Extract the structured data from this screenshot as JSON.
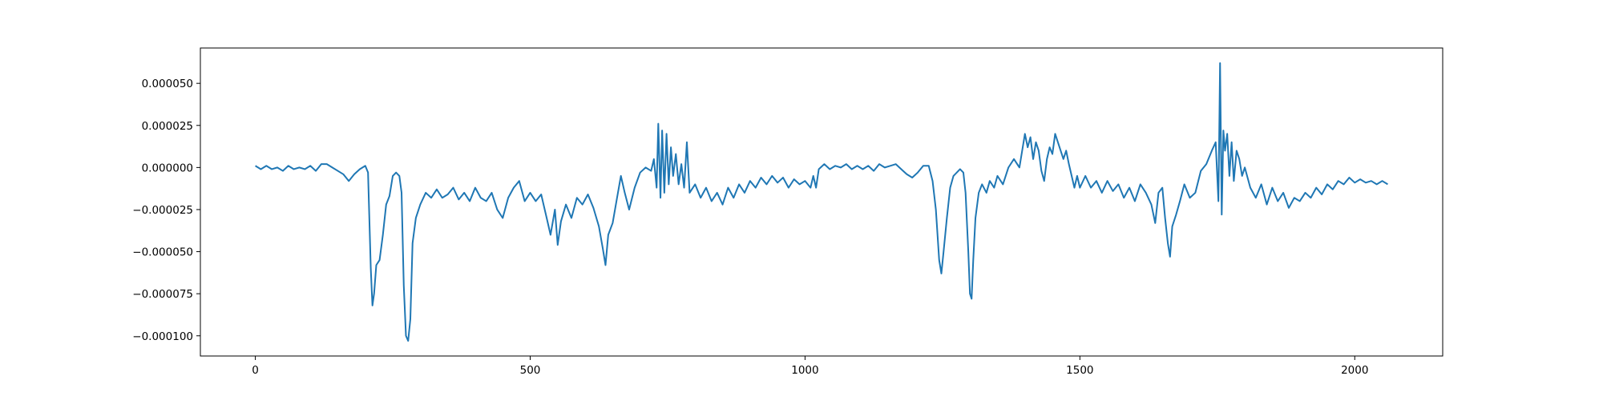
{
  "chart_data": {
    "type": "line",
    "title": "",
    "xlabel": "",
    "ylabel": "",
    "xlim": [
      -100,
      2160
    ],
    "ylim": [
      -0.000112,
      7.1e-05
    ],
    "grid": false,
    "x_ticks": [
      {
        "value": 0,
        "label": "0"
      },
      {
        "value": 500,
        "label": "500"
      },
      {
        "value": 1000,
        "label": "1000"
      },
      {
        "value": 1500,
        "label": "1500"
      },
      {
        "value": 2000,
        "label": "2000"
      }
    ],
    "y_ticks": [
      {
        "value": 5e-05,
        "label": "0.000050"
      },
      {
        "value": 2.5e-05,
        "label": "0.000025"
      },
      {
        "value": 0.0,
        "label": "0.000000"
      },
      {
        "value": -2.5e-05,
        "label": "−0.000025"
      },
      {
        "value": -5e-05,
        "label": "−0.000050"
      },
      {
        "value": -7.5e-05,
        "label": "−0.000075"
      },
      {
        "value": -0.0001,
        "label": "−0.000100"
      }
    ],
    "series": [
      {
        "color": "#1f77b4",
        "points": [
          [
            0,
            1e-06
          ],
          [
            10,
            -1e-06
          ],
          [
            20,
            1e-06
          ],
          [
            30,
            -1e-06
          ],
          [
            40,
            0.0
          ],
          [
            50,
            -2e-06
          ],
          [
            60,
            1e-06
          ],
          [
            70,
            -1e-06
          ],
          [
            80,
            0.0
          ],
          [
            90,
            -1e-06
          ],
          [
            100,
            1e-06
          ],
          [
            110,
            -2e-06
          ],
          [
            120,
            2e-06
          ],
          [
            130,
            2e-06
          ],
          [
            140,
            0.0
          ],
          [
            150,
            -2e-06
          ],
          [
            160,
            -4e-06
          ],
          [
            170,
            -8e-06
          ],
          [
            180,
            -4e-06
          ],
          [
            190,
            -1e-06
          ],
          [
            200,
            1e-06
          ],
          [
            205,
            -3e-06
          ],
          [
            210,
            -6e-05
          ],
          [
            213,
            -8.2e-05
          ],
          [
            216,
            -7.5e-05
          ],
          [
            220,
            -5.8e-05
          ],
          [
            226,
            -5.5e-05
          ],
          [
            232,
            -4e-05
          ],
          [
            238,
            -2.2e-05
          ],
          [
            244,
            -1.7e-05
          ],
          [
            250,
            -5e-06
          ],
          [
            256,
            -3e-06
          ],
          [
            262,
            -5e-06
          ],
          [
            266,
            -1.5e-05
          ],
          [
            270,
            -7e-05
          ],
          [
            274,
            -0.0001
          ],
          [
            278,
            -0.000103
          ],
          [
            282,
            -9e-05
          ],
          [
            286,
            -4.5e-05
          ],
          [
            292,
            -3e-05
          ],
          [
            300,
            -2.2e-05
          ],
          [
            310,
            -1.5e-05
          ],
          [
            320,
            -1.8e-05
          ],
          [
            330,
            -1.3e-05
          ],
          [
            340,
            -1.8e-05
          ],
          [
            350,
            -1.6e-05
          ],
          [
            360,
            -1.2e-05
          ],
          [
            370,
            -1.9e-05
          ],
          [
            380,
            -1.5e-05
          ],
          [
            390,
            -2e-05
          ],
          [
            400,
            -1.2e-05
          ],
          [
            410,
            -1.8e-05
          ],
          [
            420,
            -2e-05
          ],
          [
            430,
            -1.5e-05
          ],
          [
            440,
            -2.5e-05
          ],
          [
            450,
            -3e-05
          ],
          [
            460,
            -1.8e-05
          ],
          [
            470,
            -1.2e-05
          ],
          [
            480,
            -8e-06
          ],
          [
            490,
            -2e-05
          ],
          [
            500,
            -1.5e-05
          ],
          [
            510,
            -2e-05
          ],
          [
            520,
            -1.6e-05
          ],
          [
            530,
            -3e-05
          ],
          [
            537,
            -4e-05
          ],
          [
            545,
            -2.5e-05
          ],
          [
            550,
            -4.6e-05
          ],
          [
            556,
            -3.2e-05
          ],
          [
            565,
            -2.2e-05
          ],
          [
            575,
            -3e-05
          ],
          [
            585,
            -1.8e-05
          ],
          [
            595,
            -2.2e-05
          ],
          [
            605,
            -1.6e-05
          ],
          [
            615,
            -2.4e-05
          ],
          [
            625,
            -3.5e-05
          ],
          [
            632,
            -4.8e-05
          ],
          [
            637,
            -5.8e-05
          ],
          [
            642,
            -4e-05
          ],
          [
            650,
            -3.3e-05
          ],
          [
            658,
            -1.8e-05
          ],
          [
            665,
            -5e-06
          ],
          [
            672,
            -1.5e-05
          ],
          [
            680,
            -2.5e-05
          ],
          [
            690,
            -1.2e-05
          ],
          [
            700,
            -3e-06
          ],
          [
            710,
            0.0
          ],
          [
            720,
            -2e-06
          ],
          [
            725,
            5e-06
          ],
          [
            730,
            -1.2e-05
          ],
          [
            733,
            2.6e-05
          ],
          [
            737,
            -1.8e-05
          ],
          [
            740,
            2.2e-05
          ],
          [
            744,
            -1.5e-05
          ],
          [
            748,
            2e-05
          ],
          [
            752,
            -1e-05
          ],
          [
            756,
            1.2e-05
          ],
          [
            760,
            -5e-06
          ],
          [
            765,
            8e-06
          ],
          [
            770,
            -1e-05
          ],
          [
            775,
            2e-06
          ],
          [
            780,
            -1.2e-05
          ],
          [
            785,
            1.5e-05
          ],
          [
            790,
            -1.5e-05
          ],
          [
            800,
            -1e-05
          ],
          [
            810,
            -1.8e-05
          ],
          [
            820,
            -1.2e-05
          ],
          [
            830,
            -2e-05
          ],
          [
            840,
            -1.5e-05
          ],
          [
            850,
            -2.2e-05
          ],
          [
            860,
            -1.2e-05
          ],
          [
            870,
            -1.8e-05
          ],
          [
            880,
            -1e-05
          ],
          [
            890,
            -1.5e-05
          ],
          [
            900,
            -8e-06
          ],
          [
            910,
            -1.2e-05
          ],
          [
            920,
            -6e-06
          ],
          [
            930,
            -1e-05
          ],
          [
            940,
            -5e-06
          ],
          [
            950,
            -9e-06
          ],
          [
            960,
            -6e-06
          ],
          [
            970,
            -1.2e-05
          ],
          [
            980,
            -7e-06
          ],
          [
            990,
            -1e-05
          ],
          [
            1000,
            -8e-06
          ],
          [
            1010,
            -1.2e-05
          ],
          [
            1015,
            -5e-06
          ],
          [
            1020,
            -1.2e-05
          ],
          [
            1025,
            -1e-06
          ],
          [
            1035,
            2e-06
          ],
          [
            1045,
            -1e-06
          ],
          [
            1055,
            1e-06
          ],
          [
            1065,
            0.0
          ],
          [
            1075,
            2e-06
          ],
          [
            1085,
            -1e-06
          ],
          [
            1095,
            1e-06
          ],
          [
            1105,
            -1e-06
          ],
          [
            1115,
            1e-06
          ],
          [
            1125,
            -2e-06
          ],
          [
            1135,
            2e-06
          ],
          [
            1145,
            0.0
          ],
          [
            1155,
            1e-06
          ],
          [
            1165,
            2e-06
          ],
          [
            1175,
            -1e-06
          ],
          [
            1185,
            -4e-06
          ],
          [
            1195,
            -6e-06
          ],
          [
            1205,
            -3e-06
          ],
          [
            1215,
            1e-06
          ],
          [
            1225,
            1e-06
          ],
          [
            1232,
            -8e-06
          ],
          [
            1238,
            -2.5e-05
          ],
          [
            1244,
            -5.5e-05
          ],
          [
            1248,
            -6.3e-05
          ],
          [
            1252,
            -5e-05
          ],
          [
            1258,
            -3e-05
          ],
          [
            1264,
            -1.2e-05
          ],
          [
            1270,
            -5e-06
          ],
          [
            1276,
            -3e-06
          ],
          [
            1282,
            -1e-06
          ],
          [
            1288,
            -3e-06
          ],
          [
            1292,
            -1.5e-05
          ],
          [
            1297,
            -5e-05
          ],
          [
            1300,
            -7.5e-05
          ],
          [
            1303,
            -7.8e-05
          ],
          [
            1306,
            -5.5e-05
          ],
          [
            1310,
            -3e-05
          ],
          [
            1316,
            -1.5e-05
          ],
          [
            1322,
            -1e-05
          ],
          [
            1330,
            -1.5e-05
          ],
          [
            1336,
            -8e-06
          ],
          [
            1344,
            -1.2e-05
          ],
          [
            1350,
            -5e-06
          ],
          [
            1360,
            -1e-05
          ],
          [
            1370,
            0.0
          ],
          [
            1380,
            5e-06
          ],
          [
            1390,
            0.0
          ],
          [
            1400,
            2e-05
          ],
          [
            1405,
            1.2e-05
          ],
          [
            1410,
            1.8e-05
          ],
          [
            1415,
            5e-06
          ],
          [
            1420,
            1.5e-05
          ],
          [
            1425,
            1e-05
          ],
          [
            1430,
            -2e-06
          ],
          [
            1435,
            -8e-06
          ],
          [
            1440,
            5e-06
          ],
          [
            1445,
            1.2e-05
          ],
          [
            1450,
            8e-06
          ],
          [
            1455,
            2e-05
          ],
          [
            1460,
            1.5e-05
          ],
          [
            1465,
            1e-05
          ],
          [
            1470,
            5e-06
          ],
          [
            1475,
            1e-05
          ],
          [
            1480,
            2e-06
          ],
          [
            1485,
            -5e-06
          ],
          [
            1490,
            -1.2e-05
          ],
          [
            1495,
            -5e-06
          ],
          [
            1500,
            -1.2e-05
          ],
          [
            1510,
            -5e-06
          ],
          [
            1520,
            -1.2e-05
          ],
          [
            1530,
            -8e-06
          ],
          [
            1540,
            -1.5e-05
          ],
          [
            1550,
            -8e-06
          ],
          [
            1560,
            -1.4e-05
          ],
          [
            1570,
            -1e-05
          ],
          [
            1580,
            -1.8e-05
          ],
          [
            1590,
            -1.2e-05
          ],
          [
            1600,
            -2e-05
          ],
          [
            1610,
            -1e-05
          ],
          [
            1620,
            -1.5e-05
          ],
          [
            1630,
            -2.2e-05
          ],
          [
            1637,
            -3.3e-05
          ],
          [
            1643,
            -1.5e-05
          ],
          [
            1650,
            -1.2e-05
          ],
          [
            1655,
            -3e-05
          ],
          [
            1660,
            -4.5e-05
          ],
          [
            1664,
            -5.3e-05
          ],
          [
            1668,
            -3.5e-05
          ],
          [
            1675,
            -2.8e-05
          ],
          [
            1682,
            -2e-05
          ],
          [
            1690,
            -1e-05
          ],
          [
            1700,
            -1.8e-05
          ],
          [
            1710,
            -1.5e-05
          ],
          [
            1720,
            -2e-06
          ],
          [
            1730,
            2e-06
          ],
          [
            1740,
            1e-05
          ],
          [
            1747,
            1.5e-05
          ],
          [
            1752,
            -2e-05
          ],
          [
            1755,
            6.2e-05
          ],
          [
            1758,
            -2.8e-05
          ],
          [
            1761,
            2.2e-05
          ],
          [
            1764,
            1e-05
          ],
          [
            1768,
            2e-05
          ],
          [
            1772,
            -5e-06
          ],
          [
            1776,
            1.5e-05
          ],
          [
            1780,
            -8e-06
          ],
          [
            1785,
            1e-05
          ],
          [
            1790,
            5e-06
          ],
          [
            1795,
            -5e-06
          ],
          [
            1800,
            0.0
          ],
          [
            1810,
            -1.2e-05
          ],
          [
            1820,
            -1.8e-05
          ],
          [
            1830,
            -1e-05
          ],
          [
            1840,
            -2.2e-05
          ],
          [
            1850,
            -1.2e-05
          ],
          [
            1860,
            -2e-05
          ],
          [
            1870,
            -1.5e-05
          ],
          [
            1880,
            -2.4e-05
          ],
          [
            1890,
            -1.8e-05
          ],
          [
            1900,
            -2e-05
          ],
          [
            1910,
            -1.5e-05
          ],
          [
            1920,
            -1.8e-05
          ],
          [
            1930,
            -1.2e-05
          ],
          [
            1940,
            -1.6e-05
          ],
          [
            1950,
            -1e-05
          ],
          [
            1960,
            -1.3e-05
          ],
          [
            1970,
            -8e-06
          ],
          [
            1980,
            -1e-05
          ],
          [
            1990,
            -6e-06
          ],
          [
            2000,
            -9e-06
          ],
          [
            2010,
            -7e-06
          ],
          [
            2020,
            -9e-06
          ],
          [
            2030,
            -8e-06
          ],
          [
            2040,
            -1e-05
          ],
          [
            2050,
            -8e-06
          ],
          [
            2060,
            -1e-05
          ]
        ]
      }
    ]
  }
}
